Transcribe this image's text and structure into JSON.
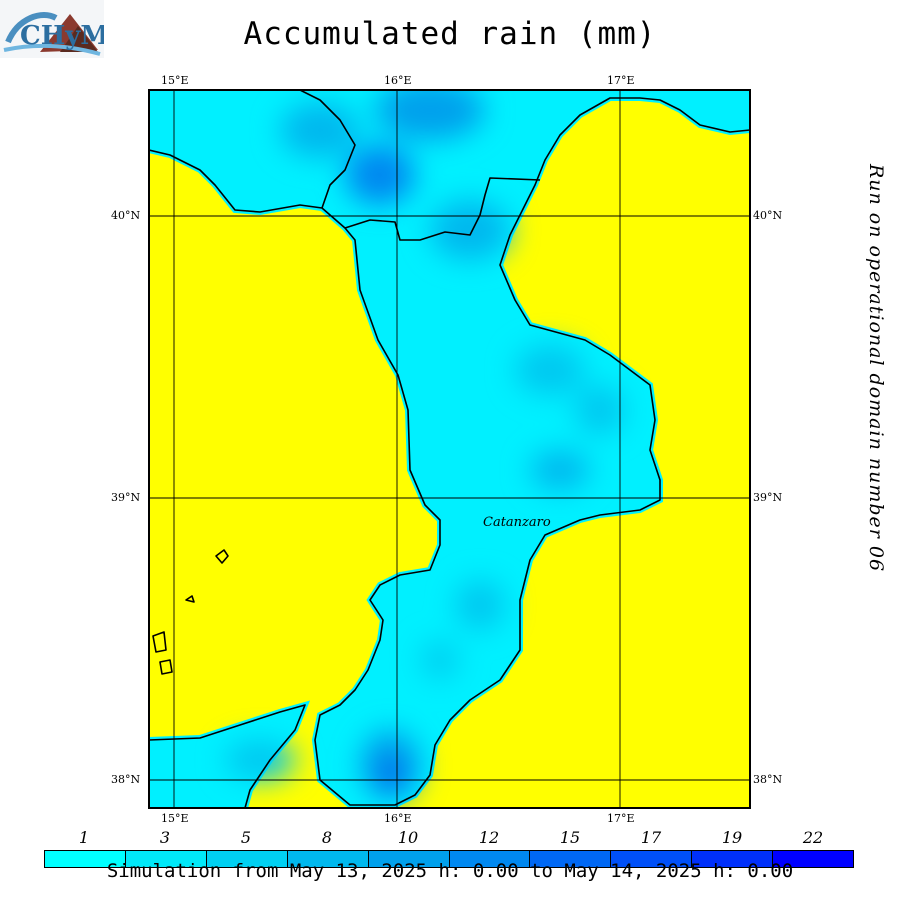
{
  "title": "Accumulated rain (mm)",
  "side_text": "Run on operational domain number 06",
  "footer": "Simulation from May 13, 2025 h: 0.00 to May 14, 2025 h: 0.00",
  "city_label": "Catanzaro",
  "lon_labels": [
    "15°E",
    "16°E",
    "17°E"
  ],
  "lat_labels": [
    "40°N",
    "39°N",
    "38°N"
  ],
  "colorbar": {
    "labels": [
      "1",
      "3",
      "5",
      "8",
      "10",
      "12",
      "15",
      "17",
      "19",
      "22"
    ],
    "colors": [
      "#00ffff",
      "#00e8f8",
      "#00d0f2",
      "#00b8ee",
      "#00a0ec",
      "#0088f0",
      "#0068f4",
      "#0050f8",
      "#0030fa",
      "#0000ff"
    ]
  },
  "colors": {
    "sea": "#ffff00",
    "land_base": "#00f0ff",
    "rain_mid": "#00b8ee",
    "rain_heavy": "#0060f0"
  }
}
